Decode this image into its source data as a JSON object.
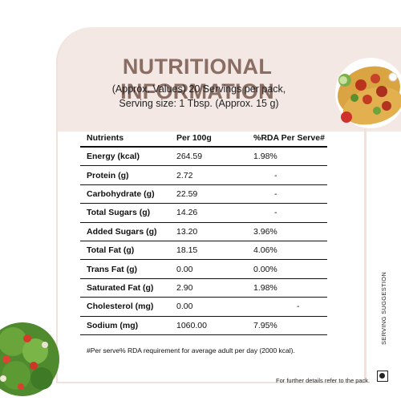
{
  "header": {
    "title": "NUTRITIONAL INFORMATION",
    "subtitle_line1": "(Approx. Values) 20 Servings per pack,",
    "subtitle_line2": "Serving size: 1 Tbsp. (Approx. 15 g)"
  },
  "table": {
    "headers": [
      "Nutrients",
      "Per 100g",
      "%RDA Per Serve#"
    ],
    "rows": [
      [
        "Energy (kcal)",
        "264.59",
        "1.98%"
      ],
      [
        "Protein (g)",
        "2.72",
        "-"
      ],
      [
        "Carbohydrate (g)",
        "22.59",
        "-"
      ],
      [
        "Total Sugars (g)",
        "14.26",
        "-"
      ],
      [
        "Added Sugars (g)",
        "13.20",
        "3.96%"
      ],
      [
        "Total Fat (g)",
        "18.15",
        "4.06%"
      ],
      [
        "Trans Fat (g)",
        "0.00",
        "0.00%"
      ],
      [
        "Saturated Fat (g)",
        "2.90",
        "1.98%"
      ],
      [
        "Cholesterol (mg)",
        "0.00",
        "-"
      ],
      [
        "Sodium (mg)",
        "1060.00",
        "7.95%"
      ]
    ]
  },
  "footnote": "#Per serve% RDA requirement for average adult per day (2000 kcal).",
  "side_label": "SERVING SUGGESTION",
  "further_details": "For further details refer to the pack.",
  "images": {
    "top_right": "tacos-food-icon",
    "bottom_left": "salad-food-icon"
  },
  "colors": {
    "title": "#8b6e63",
    "band": "#f3e8e4",
    "border": "#efe1dc"
  }
}
